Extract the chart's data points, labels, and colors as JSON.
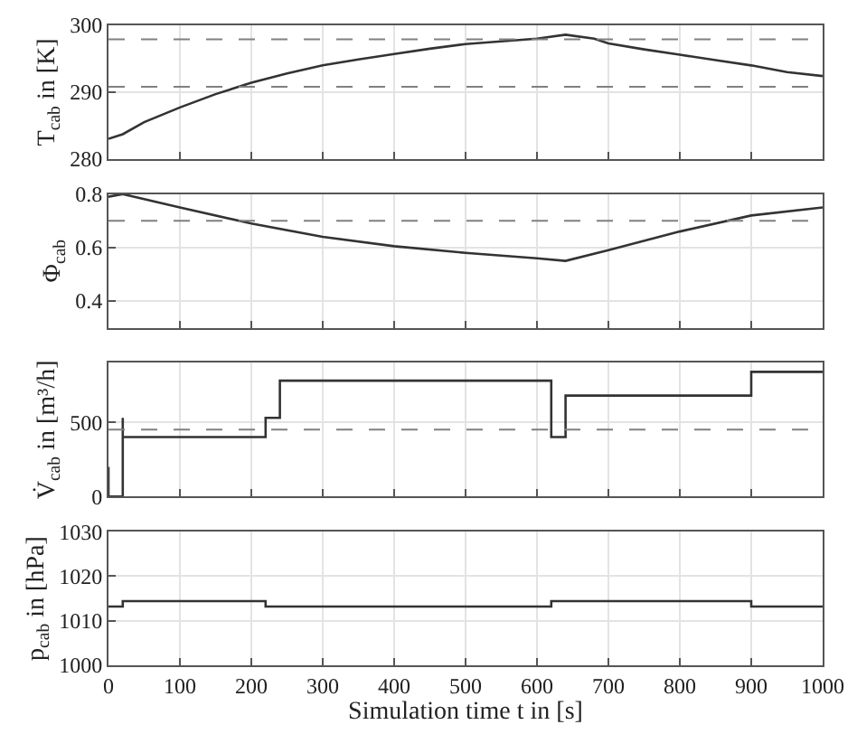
{
  "chart_data": [
    {
      "type": "line",
      "ylabel": "T$_{cab}$ in [K]",
      "x": [
        0,
        20,
        50,
        100,
        150,
        200,
        250,
        300,
        350,
        400,
        450,
        500,
        550,
        600,
        640,
        680,
        700,
        750,
        800,
        850,
        900,
        950,
        1000
      ],
      "series": [
        {
          "color": "#333333",
          "values": [
            283,
            283.7,
            285.5,
            287.7,
            289.7,
            291.4,
            292.8,
            294,
            294.9,
            295.7,
            296.5,
            297.2,
            297.6,
            298,
            298.6,
            298,
            297.3,
            296.4,
            295.6,
            294.8,
            294,
            293,
            292.4
          ]
        }
      ],
      "xlim": [
        0,
        1000
      ],
      "xticks": [
        {
          "value": 0,
          "label": null
        },
        {
          "value": 100,
          "label": null
        },
        {
          "value": 200,
          "label": null
        },
        {
          "value": 300,
          "label": null
        },
        {
          "value": 400,
          "label": null
        },
        {
          "value": 500,
          "label": null
        },
        {
          "value": 600,
          "label": null
        },
        {
          "value": 700,
          "label": null
        },
        {
          "value": 800,
          "label": null
        },
        {
          "value": 900,
          "label": null
        },
        {
          "value": 1000,
          "label": null
        }
      ],
      "ylim": [
        280,
        300
      ],
      "yticks": [
        280,
        290,
        300
      ],
      "ref_lines": [
        {
          "axis": "y",
          "value": 297.9,
          "color": "#808080",
          "line_style": "dashed"
        },
        {
          "axis": "y",
          "value": 290.8,
          "color": "#808080",
          "line_style": "dashed"
        }
      ],
      "grid": true,
      "tick_labels": "y",
      "line_style": "solid"
    },
    {
      "type": "line",
      "ylabel": "Φ$_{cab}$",
      "x": [
        0,
        20,
        100,
        200,
        300,
        400,
        500,
        600,
        640,
        700,
        800,
        900,
        1000
      ],
      "series": [
        {
          "color": "#333333",
          "values": [
            0.79,
            0.8,
            0.75,
            0.69,
            0.64,
            0.605,
            0.58,
            0.56,
            0.55,
            0.59,
            0.66,
            0.72,
            0.75
          ]
        }
      ],
      "xlim": [
        0,
        1000
      ],
      "xticks": [
        {
          "value": 0,
          "label": null
        },
        {
          "value": 100,
          "label": null
        },
        {
          "value": 200,
          "label": null
        },
        {
          "value": 300,
          "label": null
        },
        {
          "value": 400,
          "label": null
        },
        {
          "value": 500,
          "label": null
        },
        {
          "value": 600,
          "label": null
        },
        {
          "value": 700,
          "label": null
        },
        {
          "value": 800,
          "label": null
        },
        {
          "value": 900,
          "label": null
        },
        {
          "value": 1000,
          "label": null
        }
      ],
      "ylim": [
        0.3,
        0.8
      ],
      "yticks": [
        0.4,
        0.6,
        0.8
      ],
      "ref_lines": [
        {
          "axis": "y",
          "value": 0.7,
          "color": "#808080",
          "line_style": "dashed"
        }
      ],
      "grid": true,
      "tick_labels": "y",
      "line_style": "solid"
    },
    {
      "type": "line",
      "ylabel": "V̇$_{cab}$ in [m³/h]",
      "x": [
        0,
        0,
        20,
        20,
        20,
        220,
        220,
        240,
        240,
        620,
        620,
        640,
        640,
        900,
        900,
        1000
      ],
      "series": [
        {
          "color": "#333333",
          "values": [
            200,
            0,
            0,
            530,
            400,
            400,
            530,
            530,
            780,
            780,
            400,
            400,
            680,
            680,
            840,
            840
          ]
        }
      ],
      "xlim": [
        0,
        1000
      ],
      "xticks": [
        {
          "value": 0,
          "label": null
        },
        {
          "value": 100,
          "label": null
        },
        {
          "value": 200,
          "label": null
        },
        {
          "value": 300,
          "label": null
        },
        {
          "value": 400,
          "label": null
        },
        {
          "value": 500,
          "label": null
        },
        {
          "value": 600,
          "label": null
        },
        {
          "value": 700,
          "label": null
        },
        {
          "value": 800,
          "label": null
        },
        {
          "value": 900,
          "label": null
        },
        {
          "value": 1000,
          "label": null
        }
      ],
      "ylim": [
        0,
        900
      ],
      "yticks": [
        0,
        500
      ],
      "ref_lines": [
        {
          "axis": "y",
          "value": 450,
          "color": "#808080",
          "line_style": "dashed"
        }
      ],
      "grid": true,
      "tick_labels": "y",
      "line_style": "solid"
    },
    {
      "type": "step",
      "ylabel": "p$_{cab}$ in [hPa]",
      "xlabel": "Simulation time t in [s]",
      "x": [
        0,
        20,
        220,
        620,
        900,
        1000
      ],
      "series": [
        {
          "color": "#333333",
          "values": [
            1013.2,
            1014.4,
            1013.2,
            1014.4,
            1013.2,
            1013.2
          ]
        }
      ],
      "xlim": [
        0,
        1000
      ],
      "xticks": [
        0,
        100,
        200,
        300,
        400,
        500,
        600,
        700,
        800,
        900,
        1000
      ],
      "ylim": [
        1000,
        1030
      ],
      "yticks": [
        1000,
        1010,
        1020,
        1030
      ],
      "grid": true,
      "line_style": "solid"
    }
  ]
}
